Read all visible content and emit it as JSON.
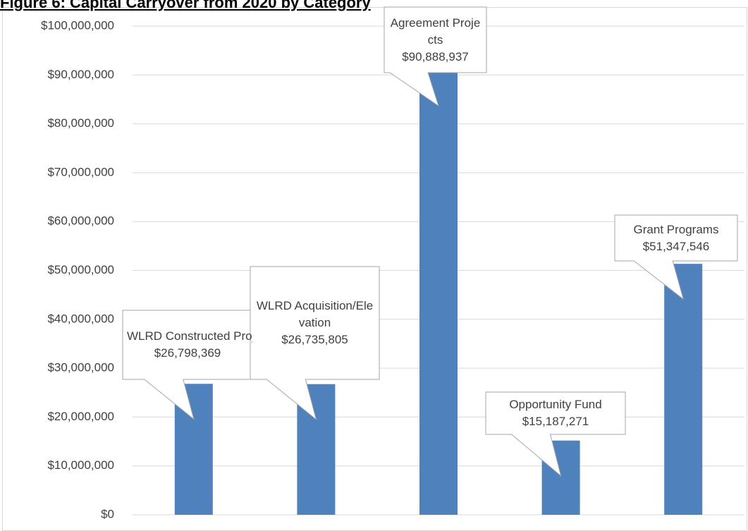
{
  "chart_data": {
    "type": "bar",
    "title": "Figure 6: Capital Carryover from 2020 by Category",
    "categories": [
      "WLRD Constructed Projects",
      "WLRD Acquisition/Elevation",
      "Agreement Projects",
      "Opportunity Fund",
      "Grant Programs"
    ],
    "values": [
      26798369,
      26735805,
      90888937,
      15187271,
      51347546
    ],
    "value_labels": [
      "$26,798,369",
      "$26,735,805",
      "$90,888,937",
      "$15,187,271",
      "$51,347,546"
    ],
    "color": "#4f81bd",
    "ylim": [
      0,
      100000000
    ],
    "yticks": [
      {
        "value": 0,
        "label": "$0"
      },
      {
        "value": 10000000,
        "label": "$10,000,000"
      },
      {
        "value": 20000000,
        "label": "$20,000,000"
      },
      {
        "value": 30000000,
        "label": "$30,000,000"
      },
      {
        "value": 40000000,
        "label": "$40,000,000"
      },
      {
        "value": 50000000,
        "label": "$50,000,000"
      },
      {
        "value": 60000000,
        "label": "$60,000,000"
      },
      {
        "value": 70000000,
        "label": "$70,000,000"
      },
      {
        "value": 80000000,
        "label": "$80,000,000"
      },
      {
        "value": 90000000,
        "label": "$90,000,000"
      },
      {
        "value": 100000000,
        "label": "$100,000,000"
      }
    ],
    "grid": true
  }
}
